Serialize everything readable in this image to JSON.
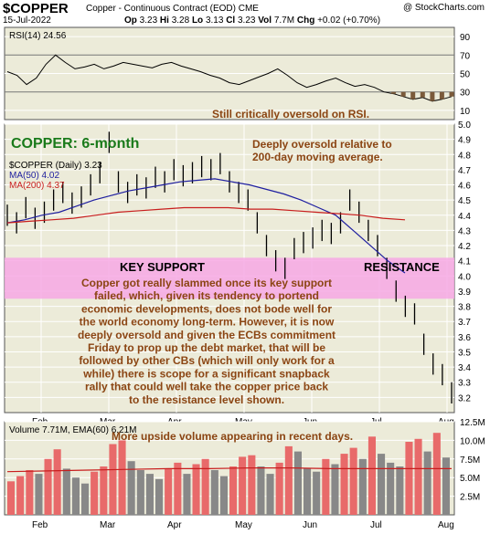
{
  "header": {
    "symbol": "$COPPER",
    "name": "Copper - Continuous Contract (EOD)",
    "exchange": "CME",
    "site": "@ StockCharts.com",
    "date": "15-Jul-2022",
    "quote": {
      "open_label": "Op",
      "open": "3.23",
      "high_label": "Hi",
      "high": "3.28",
      "low_label": "Lo",
      "low": "3.13",
      "close_label": "Cl",
      "close": "3.23",
      "vol_label": "Vol",
      "vol": "7.7M",
      "chg_label": "Chg",
      "chg": "+0.02 (+0.70%)"
    }
  },
  "colors": {
    "panel_bg": "#ecebd9",
    "grid": "#ffffff",
    "price_bar": "#000000",
    "ma50": "#1f1fa0",
    "ma200": "#c81e1e",
    "rsi_fill": "#7b5a3a",
    "annotation": "#8b4513",
    "title_green": "#1a7a1a",
    "support_band": "#f7a8e4",
    "volume_up": "#e86a6a",
    "volume_down": "#888888",
    "volume_ema": "#c81e1e"
  },
  "chart_data": [
    {
      "type": "line",
      "panel": "rsi",
      "legend": "RSI(14) 24.56",
      "ylim": [
        0,
        100
      ],
      "yticks": [
        10,
        30,
        50,
        70,
        90
      ],
      "series": [
        {
          "name": "RSI(14)",
          "values": [
            52,
            48,
            38,
            45,
            60,
            70,
            62,
            55,
            57,
            60,
            55,
            58,
            62,
            60,
            58,
            56,
            60,
            62,
            58,
            55,
            52,
            48,
            45,
            40,
            38,
            42,
            46,
            50,
            55,
            48,
            40,
            35,
            38,
            42,
            45,
            40,
            36,
            38,
            35,
            30,
            28,
            25,
            22,
            24,
            20,
            22,
            25
          ]
        }
      ],
      "annotation": "Still critically oversold on RSI."
    },
    {
      "type": "line",
      "panel": "price",
      "title": "COPPER: 6-month",
      "legend": "$COPPER (Daily) 3.23",
      "ylim": [
        3.1,
        5.0
      ],
      "yticks": [
        3.2,
        3.3,
        3.4,
        3.5,
        3.6,
        3.7,
        3.8,
        3.9,
        4.0,
        4.1,
        4.2,
        4.3,
        4.4,
        4.5,
        4.6,
        4.7,
        4.8,
        4.9,
        5.0
      ],
      "xticks": [
        "Feb",
        "Mar",
        "Apr",
        "May",
        "Jun",
        "Jul",
        "Aug"
      ],
      "series": [
        {
          "name": "$COPPER (Daily) 3.23",
          "values": [
            4.4,
            4.35,
            4.45,
            4.38,
            4.42,
            4.5,
            4.55,
            4.48,
            4.52,
            4.6,
            4.68,
            4.88,
            4.62,
            4.55,
            4.6,
            4.58,
            4.65,
            4.62,
            4.7,
            4.66,
            4.68,
            4.72,
            4.7,
            4.74,
            4.62,
            4.55,
            4.5,
            4.35,
            4.2,
            4.1,
            4.05,
            4.18,
            4.22,
            4.25,
            4.3,
            4.28,
            4.35,
            4.5,
            4.42,
            4.3,
            4.2,
            4.05,
            3.9,
            3.8,
            3.75,
            3.55,
            3.42,
            3.35,
            3.23
          ]
        },
        {
          "name": "MA(50) 4.02",
          "values": [
            4.35,
            4.37,
            4.4,
            4.42,
            4.46,
            4.5,
            4.53,
            4.56,
            4.58,
            4.6,
            4.62,
            4.63,
            4.64,
            4.62,
            4.6,
            4.57,
            4.54,
            4.5,
            4.45,
            4.4,
            4.3,
            4.2,
            4.1,
            4.02
          ]
        },
        {
          "name": "MA(200) 4.37",
          "values": [
            4.35,
            4.36,
            4.37,
            4.38,
            4.4,
            4.42,
            4.43,
            4.44,
            4.45,
            4.45,
            4.45,
            4.44,
            4.44,
            4.43,
            4.42,
            4.41,
            4.4,
            4.38,
            4.37
          ]
        }
      ],
      "annotations": [
        "Deeply oversold relative to",
        "200-day moving average.",
        "KEY SUPPORT",
        "RESISTANCE",
        "Copper got really slammed once its key support",
        "failed, which, given its tendency to portend",
        "economic developments, does not bode well for",
        "the world economy long-term. However, it is now",
        "deeply oversold and given the ECBs commitment",
        "Friday to prop up the debt market, that will be",
        "followed by other CBs (which will only work for a",
        "while) there is scope for a significant snapback",
        "rally that could well take the copper price back",
        "to the resistance level shown."
      ],
      "support_band": [
        3.85,
        4.12
      ]
    },
    {
      "type": "bar",
      "panel": "volume",
      "legend": "Volume 7.71M, EMA(60) 6.21M",
      "ylim": [
        0,
        12.5
      ],
      "yticks": [
        "2.5M",
        "5.0M",
        "7.5M",
        "10.0M",
        "12.5M"
      ],
      "xticks": [
        "Feb",
        "Mar",
        "Apr",
        "May",
        "Jun",
        "Jul",
        "Aug"
      ],
      "values": [
        4.5,
        5.2,
        6.0,
        5.5,
        7.5,
        8.8,
        6.2,
        5.0,
        4.2,
        5.8,
        6.5,
        9.5,
        10.0,
        7.2,
        6.0,
        5.5,
        4.8,
        6.2,
        7.0,
        5.5,
        6.8,
        7.5,
        6.0,
        5.2,
        6.5,
        7.8,
        8.0,
        6.5,
        5.5,
        7.0,
        9.2,
        8.5,
        6.2,
        5.8,
        7.5,
        6.8,
        8.2,
        9.0,
        7.5,
        10.5,
        8.2,
        7.0,
        6.5,
        9.8,
        10.2,
        8.5,
        11.0,
        7.7
      ],
      "ema": [
        5.8,
        5.9,
        6.0,
        6.1,
        6.2,
        6.2,
        6.3,
        6.3,
        6.2,
        6.2,
        6.2,
        6.2
      ],
      "annotation": "More upside volume appearing in recent days."
    }
  ]
}
